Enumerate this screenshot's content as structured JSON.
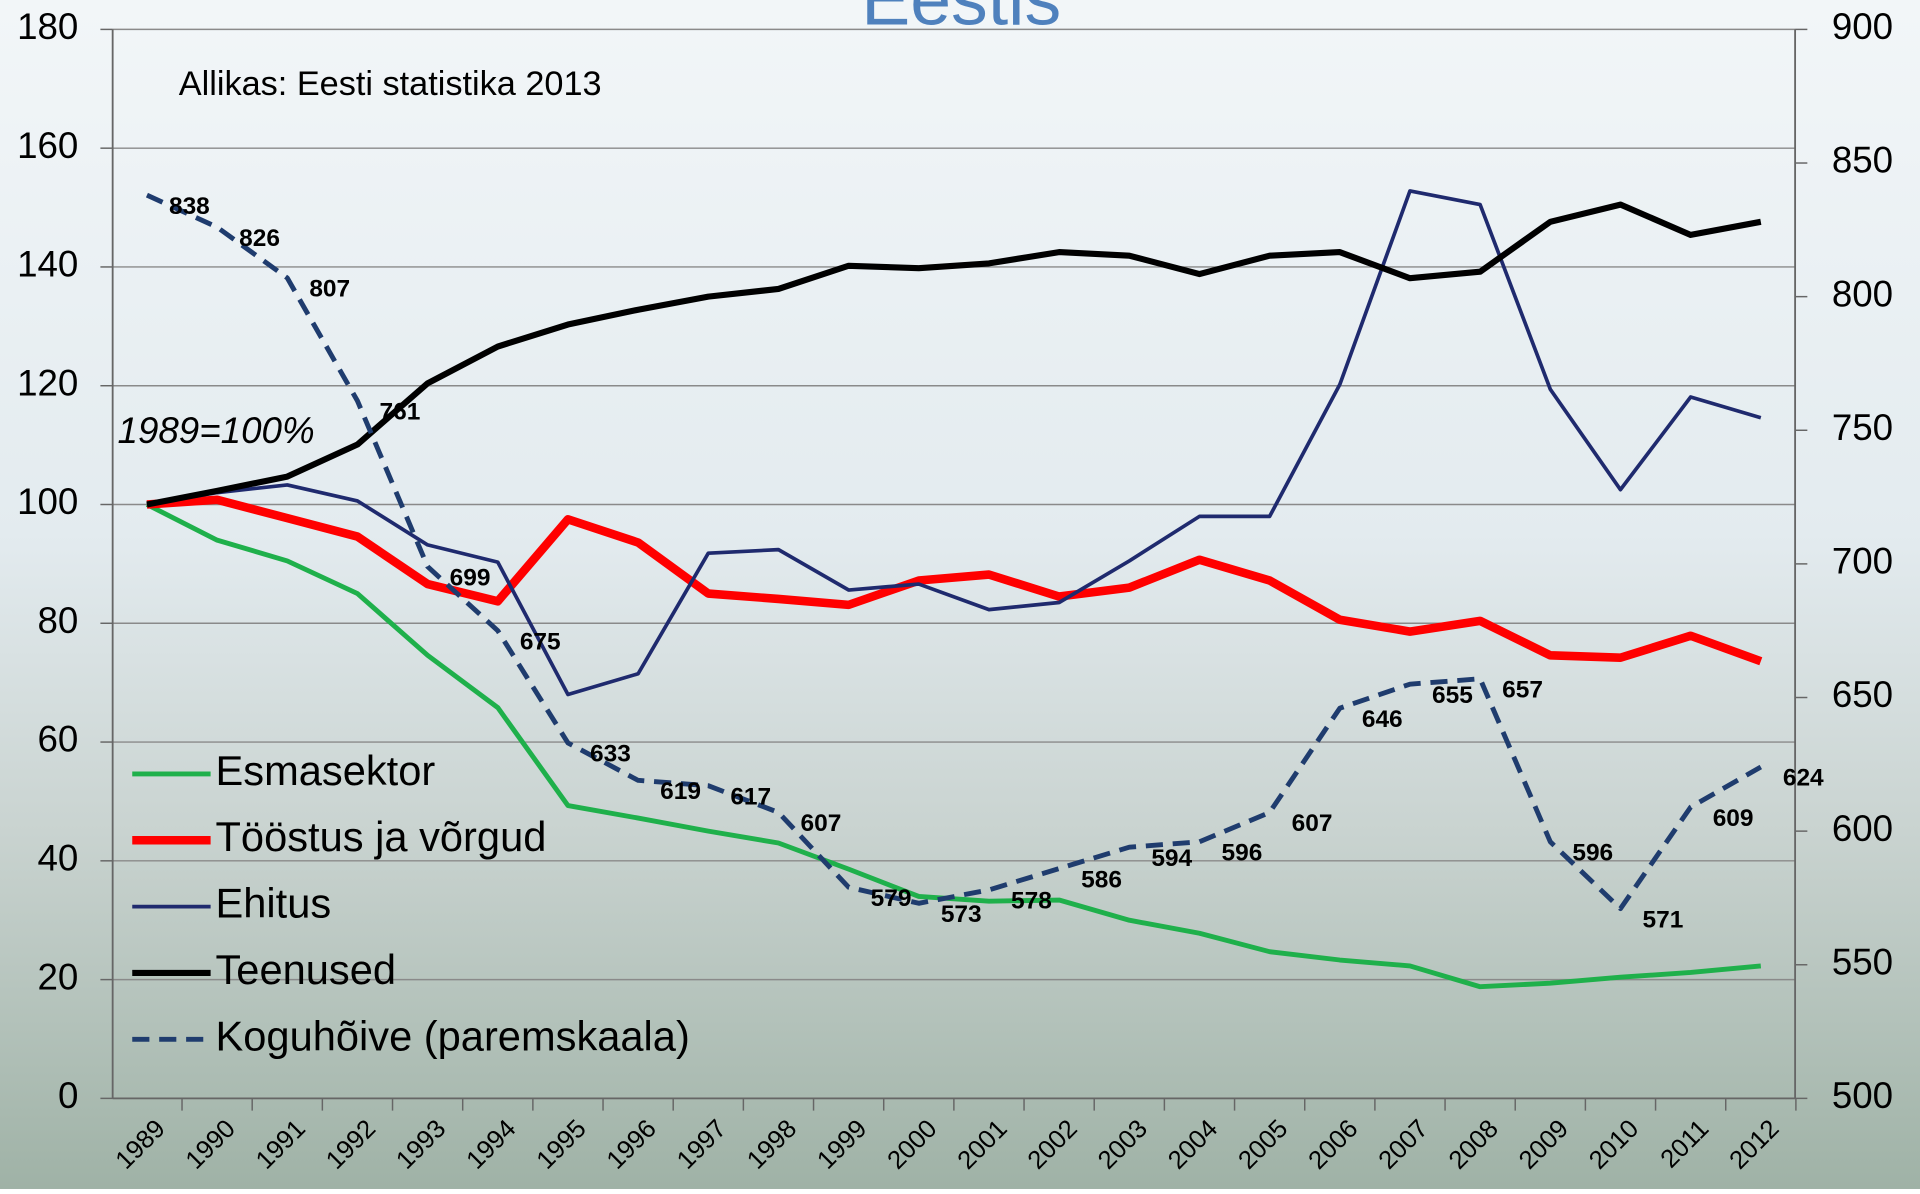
{
  "chart_data": {
    "type": "line",
    "title": "Eestis",
    "annotations": [
      "Allikas: Eesti statistika 2013",
      "1989=100%"
    ],
    "categories": [
      "1989",
      "1990",
      "1991",
      "1992",
      "1993",
      "1994",
      "1995",
      "1996",
      "1997",
      "1998",
      "1999",
      "2000",
      "2001",
      "2002",
      "2003",
      "2004",
      "2005",
      "2006",
      "2007",
      "2008",
      "2009",
      "2010",
      "2011",
      "2012"
    ],
    "series": [
      {
        "name": "Esmasektor",
        "color": "#1fb04b",
        "width": 4,
        "values": [
          100,
          94,
          90.5,
          85,
          74.6,
          65.8,
          49.3,
          47.2,
          45,
          43,
          38.6,
          34,
          33.2,
          33.4,
          30,
          27.8,
          24.7,
          23.3,
          22.3,
          18.8,
          19.4,
          20.4,
          21.2,
          22.3
        ]
      },
      {
        "name": "Tööstus ja võrgud",
        "color": "#ff0000",
        "width": 7,
        "values": [
          100,
          100.8,
          97.7,
          94.6,
          86.6,
          83.7,
          97.5,
          93.6,
          85,
          84.1,
          83.1,
          87.2,
          88.2,
          84.5,
          86,
          90.7,
          87.2,
          80.6,
          78.6,
          80.4,
          74.6,
          74.2,
          77.9,
          73.6
        ]
      },
      {
        "name": "Ehitus",
        "color": "#1f2a6e",
        "width": 3,
        "values": [
          100,
          102,
          103.3,
          100.6,
          93.2,
          90.3,
          68,
          71.5,
          91.8,
          92.4,
          85.6,
          86.6,
          82.3,
          83.5,
          90.5,
          98,
          98,
          120.2,
          152.8,
          150.5,
          119.4,
          102.5,
          118.1,
          114.6
        ]
      },
      {
        "name": "Teenused",
        "color": "#000000",
        "width": 5,
        "values": [
          100,
          102.3,
          104.7,
          110.1,
          120.4,
          126.6,
          130.3,
          132.8,
          135,
          136.3,
          140.2,
          139.8,
          140.6,
          142.5,
          141.9,
          138.8,
          141.9,
          142.5,
          138.1,
          139.2,
          147.6,
          150.5,
          145.4,
          147.6
        ]
      },
      {
        "name": "Koguhõive (paremskaala)",
        "color": "#1f3c6e",
        "width": 4,
        "dashed": true,
        "axis": "y2",
        "data_labels": true,
        "values": [
          838,
          826,
          807,
          761,
          699,
          675,
          633,
          619,
          617,
          607,
          579,
          573,
          578,
          586,
          594,
          596,
          607,
          646,
          655,
          657,
          596,
          571,
          609,
          624
        ]
      }
    ],
    "ylim": [
      0,
      180
    ],
    "yticks": [
      0,
      20,
      40,
      60,
      80,
      100,
      120,
      140,
      160,
      180
    ],
    "y2lim": [
      500,
      900
    ],
    "y2ticks": [
      500,
      550,
      600,
      650,
      700,
      750,
      800,
      850,
      900
    ],
    "grid": true,
    "legend": "lower left"
  }
}
